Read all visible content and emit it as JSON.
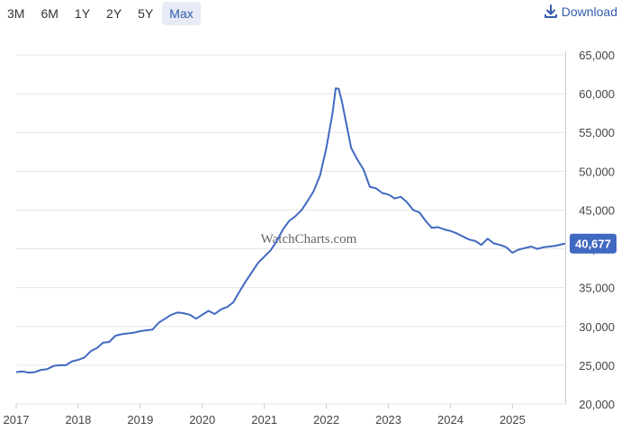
{
  "toolbar": {
    "ranges": [
      "3M",
      "6M",
      "1Y",
      "2Y",
      "5Y",
      "Max"
    ],
    "active_range": "Max",
    "download_label": "Download"
  },
  "watermark": "WatchCharts.com",
  "colors": {
    "line": "#4169c1",
    "accent": "#335cad",
    "badge": "#4169c1",
    "grid": "#e6e6e6"
  },
  "chart_data": {
    "type": "line",
    "title": "",
    "xlabel": "",
    "ylabel": "",
    "grid": true,
    "y_axis_side": "right",
    "ylim": [
      20000,
      65000
    ],
    "xlim": [
      2017.0,
      2025.85
    ],
    "x_ticks": [
      "2017",
      "2018",
      "2019",
      "2020",
      "2021",
      "2022",
      "2023",
      "2024",
      "2025"
    ],
    "y_ticks": [
      "20,000",
      "25,000",
      "30,000",
      "35,000",
      "40,000",
      "45,000",
      "50,000",
      "55,000",
      "60,000",
      "65,000"
    ],
    "current_value_label": "40,677",
    "current_value": 40677,
    "series": [
      {
        "x": [
          2017.0,
          2017.1,
          2017.2,
          2017.3,
          2017.4,
          2017.5,
          2017.6,
          2017.7,
          2017.8,
          2017.9,
          2018.0,
          2018.1,
          2018.2,
          2018.3,
          2018.4,
          2018.5,
          2018.6,
          2018.7,
          2018.8,
          2018.9,
          2019.0,
          2019.1,
          2019.2,
          2019.3,
          2019.4,
          2019.5,
          2019.6,
          2019.7,
          2019.8,
          2019.9,
          2020.0,
          2020.1,
          2020.2,
          2020.3,
          2020.4,
          2020.5,
          2020.6,
          2020.7,
          2020.8,
          2020.9,
          2021.0,
          2021.1,
          2021.2,
          2021.3,
          2021.4,
          2021.5,
          2021.6,
          2021.7,
          2021.8,
          2021.9,
          2022.0,
          2022.1,
          2022.15,
          2022.2,
          2022.25,
          2022.3,
          2022.4,
          2022.5,
          2022.6,
          2022.7,
          2022.8,
          2022.9,
          2023.0,
          2023.1,
          2023.2,
          2023.3,
          2023.4,
          2023.5,
          2023.6,
          2023.7,
          2023.8,
          2023.9,
          2024.0,
          2024.1,
          2024.2,
          2024.3,
          2024.4,
          2024.5,
          2024.6,
          2024.7,
          2024.8,
          2024.9,
          2025.0,
          2025.1,
          2025.2,
          2025.3,
          2025.4,
          2025.5,
          2025.6,
          2025.7,
          2025.8,
          2025.85
        ],
        "y": [
          24100,
          24200,
          24050,
          24100,
          24400,
          24500,
          24900,
          25000,
          25000,
          25500,
          25700,
          26000,
          26800,
          27200,
          27900,
          28000,
          28800,
          29000,
          29100,
          29200,
          29400,
          29500,
          29600,
          30500,
          31000,
          31500,
          31800,
          31700,
          31500,
          31000,
          31500,
          32000,
          31600,
          32200,
          32500,
          33100,
          34500,
          35800,
          37000,
          38200,
          39000,
          39800,
          41000,
          42500,
          43600,
          44200,
          45000,
          46200,
          47500,
          49500,
          53000,
          57500,
          60700,
          60600,
          59000,
          57000,
          53000,
          51500,
          50200,
          48000,
          47800,
          47200,
          47000,
          46500,
          46700,
          46000,
          45000,
          44700,
          43600,
          42700,
          42800,
          42500,
          42300,
          42000,
          41600,
          41200,
          41000,
          40500,
          41300,
          40700,
          40500,
          40200,
          39500,
          39900,
          40100,
          40300,
          40000,
          40200,
          40300,
          40400,
          40600,
          40677
        ]
      }
    ]
  }
}
